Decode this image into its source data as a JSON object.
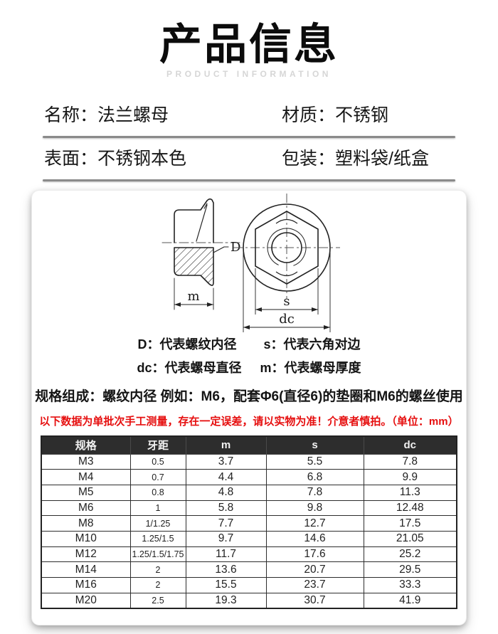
{
  "header": {
    "title": "产品信息",
    "subtitle": "PRODUCT INFORMATION"
  },
  "fields": {
    "name_label": "名称：",
    "name_value": "法兰螺母",
    "material_label": "材质：",
    "material_value": "不锈钢",
    "surface_label": "表面：",
    "surface_value": "不锈钢本色",
    "packing_label": "包装：",
    "packing_value": "塑料袋/纸盒"
  },
  "diagram": {
    "dim_D": "D",
    "dim_m": "m",
    "dim_s": "s",
    "dim_dc": "dc",
    "legend_D": "D：代表螺纹内径",
    "legend_s": "s：代表六角对边",
    "legend_dc": "dc：代表螺母直径",
    "legend_m": "m：代表螺母厚度",
    "spec_note": "规格组成：螺纹内径 例如：M6，配套Φ6(直径6)的垫圈和M6的螺丝使用",
    "warning": "以下数据为单批次手工测量，存在一定误差，请以实物为准！介意者慎拍。（单位：mm）"
  },
  "spec_table": {
    "headers": [
      "规格",
      "牙距",
      "m",
      "s",
      "dc"
    ],
    "rows": [
      [
        "M3",
        "0.5",
        "3.7",
        "5.5",
        "7.8"
      ],
      [
        "M4",
        "0.7",
        "4.4",
        "6.8",
        "9.9"
      ],
      [
        "M5",
        "0.8",
        "4.8",
        "7.8",
        "11.3"
      ],
      [
        "M6",
        "1",
        "5.8",
        "9.8",
        "12.48"
      ],
      [
        "M8",
        "1/1.25",
        "7.7",
        "12.7",
        "17.5"
      ],
      [
        "M10",
        "1.25/1.5",
        "9.7",
        "14.6",
        "21.05"
      ],
      [
        "M12",
        "1.25/1.5/1.75",
        "11.7",
        "17.6",
        "25.2"
      ],
      [
        "M14",
        "2",
        "13.6",
        "20.7",
        "29.5"
      ],
      [
        "M16",
        "2",
        "15.5",
        "23.7",
        "33.3"
      ],
      [
        "M20",
        "2.5",
        "19.3",
        "30.7",
        "41.9"
      ]
    ]
  },
  "colors": {
    "warning_red": "#e60f0f",
    "table_header_bg": "#2d2d2d",
    "subtitle_gray": "#d6d6d6",
    "divider_gray": "#8a8a8a"
  }
}
